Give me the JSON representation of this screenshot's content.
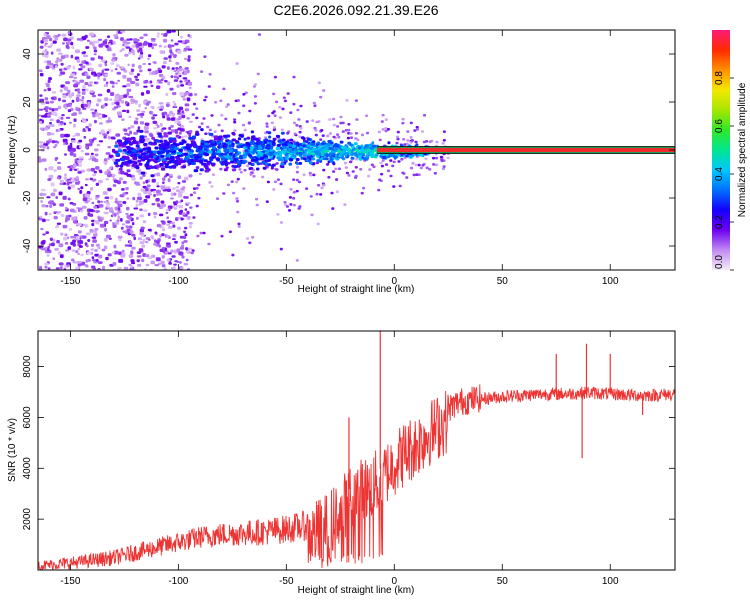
{
  "title": "C2E6.2026.092.21.39.E26",
  "colors": {
    "line": "#ee3333",
    "axis": "#000000",
    "carrier_band": "#ee2a2a",
    "carrier_edge": "#1a9a55"
  },
  "chart_data": [
    {
      "id": "spectrogram",
      "type": "heatmap",
      "xlabel": "Height of straight line (km)",
      "ylabel": "Frequency (Hz)",
      "xlim": [
        -165,
        130
      ],
      "ylim": [
        -50,
        50
      ],
      "xticks": [
        -150,
        -100,
        -50,
        0,
        50,
        100
      ],
      "xtick_labels": [
        "-150",
        "-100",
        "-50",
        "0",
        "50",
        "100"
      ],
      "yticks": [
        -40,
        -20,
        0,
        20,
        40
      ],
      "ytick_labels": [
        "-40",
        "-20",
        "0",
        "20",
        "40"
      ],
      "carrier_frequency_hz": 0,
      "carrier_start_km": -8,
      "colorbar": {
        "label": "Normalized spectral amplitude",
        "range": [
          0,
          1
        ],
        "ticks": [
          0.0,
          0.2,
          0.4,
          0.6,
          0.8
        ],
        "tick_labels": [
          "0.0",
          "0.2",
          "0.4",
          "0.6",
          "0.8"
        ],
        "stops": [
          "#f4ecfb",
          "#c18bf2",
          "#6b00f0",
          "#1400ff",
          "#0070ff",
          "#00c8ff",
          "#00e68f",
          "#2fe82a",
          "#a6e600",
          "#f5e800",
          "#ff9000",
          "#ff2a00",
          "#ff1a7a"
        ]
      }
    },
    {
      "id": "snr",
      "type": "line",
      "xlabel": "Height of straight line (km)",
      "ylabel": "SNR (10 * v/v)",
      "xlim": [
        -165,
        130
      ],
      "ylim": [
        0,
        9400
      ],
      "xticks": [
        -150,
        -100,
        -50,
        0,
        50,
        100
      ],
      "xtick_labels": [
        "-150",
        "-100",
        "-50",
        "0",
        "50",
        "100"
      ],
      "yticks": [
        2000,
        4000,
        6000,
        8000
      ],
      "ytick_labels": [
        "2000",
        "4000",
        "6000",
        "8000"
      ],
      "series": [
        {
          "name": "SNR",
          "x": [
            -165,
            -150,
            -140,
            -130,
            -120,
            -110,
            -100,
            -90,
            -80,
            -70,
            -60,
            -50,
            -40,
            -35,
            -30,
            -25,
            -20,
            -15,
            -10,
            -5,
            0,
            5,
            10,
            15,
            20,
            25,
            30,
            40,
            50,
            60,
            70,
            80,
            90,
            100,
            110,
            120,
            130
          ],
          "values": [
            150,
            250,
            350,
            450,
            650,
            850,
            1050,
            1250,
            1350,
            1400,
            1450,
            1550,
            1700,
            1900,
            2200,
            2700,
            3300,
            3500,
            3700,
            4100,
            4600,
            5000,
            5300,
            5700,
            6000,
            6300,
            6550,
            6700,
            6800,
            6850,
            6900,
            6900,
            6950,
            6900,
            6850,
            6850,
            6900
          ],
          "spikes": [
            {
              "x": -6.5,
              "value": 9400
            },
            {
              "x": -21,
              "value": 6000
            },
            {
              "x": 75,
              "value": 8500
            },
            {
              "x": 89,
              "value": 8900
            },
            {
              "x": 87,
              "value": 4400
            },
            {
              "x": 100,
              "value": 8500
            },
            {
              "x": 115,
              "value": 6100
            }
          ]
        }
      ]
    }
  ]
}
